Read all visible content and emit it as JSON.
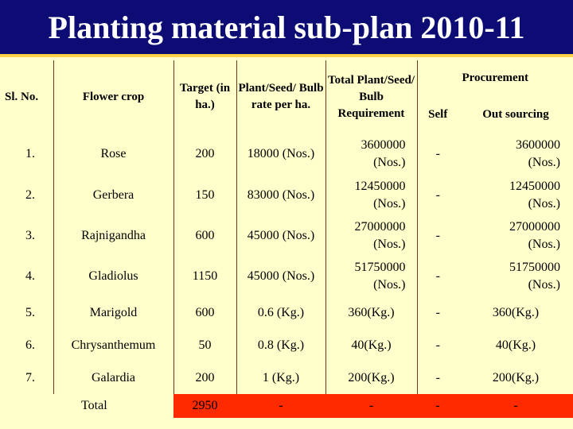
{
  "title": "Planting material sub-plan 2010-11",
  "colors": {
    "title_bg": "#0c0c74",
    "title_border": "#ffd24a",
    "page_bg": "#ffffcc",
    "total_row_bg": "#ff2a00"
  },
  "headers": {
    "sl_no": "Sl. No.",
    "flower_crop": "Flower crop",
    "target": "Target (in ha.)",
    "rate": "Plant/Seed/ Bulb rate per ha.",
    "total_req": "Total Plant/Seed/ Bulb Requirement",
    "procurement": "Procurement",
    "self": "Self",
    "out_sourcing": "Out sourcing"
  },
  "rows": [
    {
      "sl": "1.",
      "crop": "Rose",
      "target": "200",
      "rate": "18000 (Nos.)",
      "req_value": "3600000",
      "req_unit": "(Nos.)",
      "self": "-",
      "out_value": "3600000",
      "out_unit": "(Nos.)"
    },
    {
      "sl": "2.",
      "crop": "Gerbera",
      "target": "150",
      "rate": "83000 (Nos.)",
      "req_value": "12450000",
      "req_unit": "(Nos.)",
      "self": "-",
      "out_value": "12450000",
      "out_unit": "(Nos.)"
    },
    {
      "sl": "3.",
      "crop": "Rajnigandha",
      "target": "600",
      "rate": "45000 (Nos.)",
      "req_value": "27000000",
      "req_unit": "(Nos.)",
      "self": "-",
      "out_value": "27000000",
      "out_unit": "(Nos.)"
    },
    {
      "sl": "4.",
      "crop": "Gladiolus",
      "target": "1150",
      "rate": "45000 (Nos.)",
      "req_value": "51750000",
      "req_unit": "(Nos.)",
      "self": "-",
      "out_value": "51750000",
      "out_unit": "(Nos.)"
    },
    {
      "sl": "5.",
      "crop": "Marigold",
      "target": "600",
      "rate": "0.6 (Kg.)",
      "req": "360(Kg.)",
      "self": "-",
      "out": "360(Kg.)"
    },
    {
      "sl": "6.",
      "crop": "Chrysanthemum",
      "target": "50",
      "rate": "0.8 (Kg.)",
      "req": "40(Kg.)",
      "self": "-",
      "out": "40(Kg.)"
    },
    {
      "sl": "7.",
      "crop": "Galardia",
      "target": "200",
      "rate": "1 (Kg.)",
      "req": "200(Kg.)",
      "self": "-",
      "out": "200(Kg.)"
    }
  ],
  "total": {
    "label": "Total",
    "target": "2950",
    "rate": "-",
    "req": "-",
    "self": "-",
    "out": "-"
  }
}
